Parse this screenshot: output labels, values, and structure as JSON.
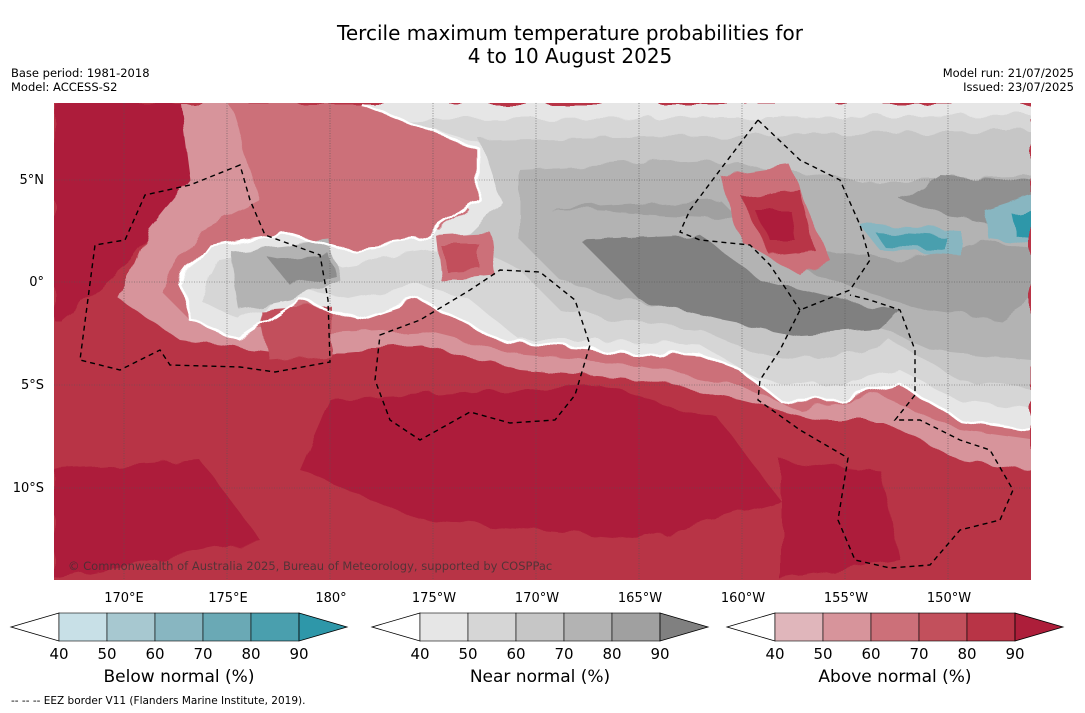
{
  "title": {
    "line1": "Tercile maximum temperature probabilities for",
    "line2": "4 to 10 August 2025"
  },
  "meta_left": {
    "base_period": "Base period: 1981-2018",
    "model": "Model: ACCESS-S2"
  },
  "meta_right": {
    "model_run": "Model run: 21/07/2025",
    "issued": "Issued: 23/07/2025"
  },
  "map": {
    "lat_labels": [
      "5°N",
      "0°",
      "5°S",
      "10°S"
    ],
    "lon_labels": [
      "170°E",
      "175°E",
      "180°",
      "175°W",
      "170°W",
      "165°W",
      "160°W",
      "155°W",
      "150°W"
    ],
    "copyright": "© Commonwealth of Australia 2025, Bureau of Meteorology, supported by COSPPac"
  },
  "colorbars": [
    {
      "label": "Below normal (%)",
      "ticks": [
        "40",
        "50",
        "60",
        "70",
        "80",
        "90"
      ],
      "colors": [
        "#c8e0e7",
        "#a7c8d0",
        "#88b6c1",
        "#6aa9b5",
        "#4a9fae",
        "#2e97a9"
      ]
    },
    {
      "label": "Near normal (%)",
      "ticks": [
        "40",
        "50",
        "60",
        "70",
        "80",
        "90"
      ],
      "colors": [
        "#e6e6e6",
        "#d6d6d6",
        "#c6c6c6",
        "#b3b3b3",
        "#a0a0a0",
        "#808080"
      ]
    },
    {
      "label": "Above normal (%)",
      "ticks": [
        "40",
        "50",
        "60",
        "70",
        "80",
        "90"
      ],
      "colors": [
        "#e0b6bb",
        "#d7949b",
        "#cc7079",
        "#c2505c",
        "#b83446",
        "#ad1e3a"
      ]
    }
  ],
  "footnote": "--  --  -- EEZ border V11 (Flanders Marine Institute, 2019)."
}
